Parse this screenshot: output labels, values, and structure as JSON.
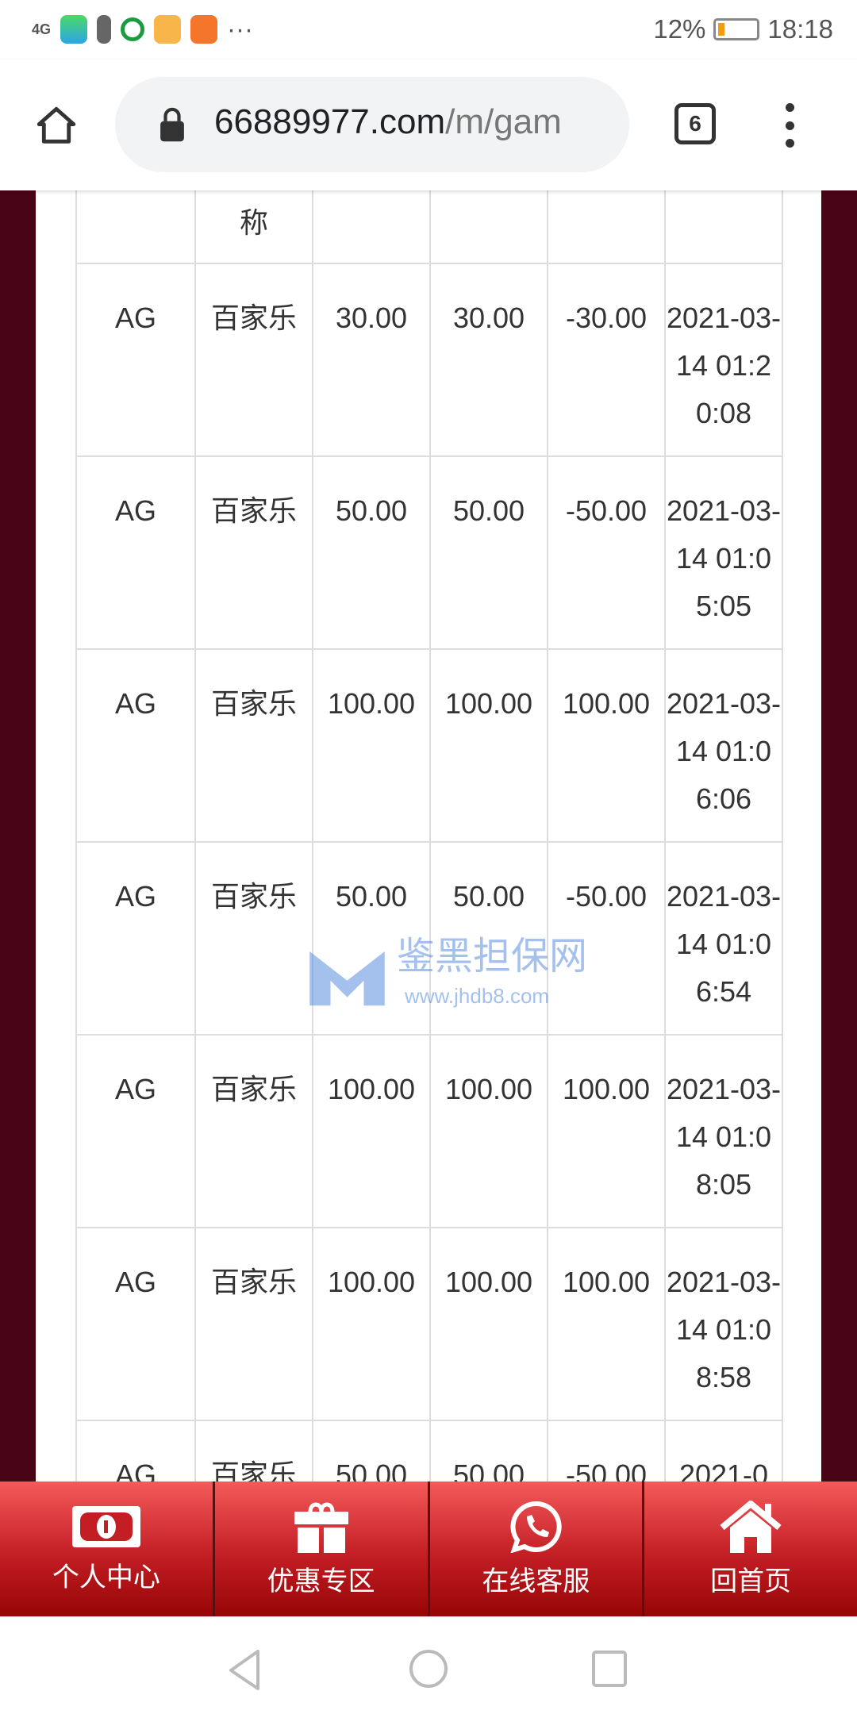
{
  "status": {
    "signal": "4G",
    "battery": "12%",
    "time": "18:18",
    "more": "···"
  },
  "browser": {
    "url_host": "66889977.com",
    "url_path": "/m/gam",
    "tab_count": "6"
  },
  "table": {
    "header_partial": [
      "",
      "称",
      "",
      "",
      "",
      ""
    ],
    "rows": [
      [
        "AG",
        "百家乐",
        "30.00",
        "30.00",
        "-30.00",
        "2021-03-14 01:20:08"
      ],
      [
        "AG",
        "百家乐",
        "50.00",
        "50.00",
        "-50.00",
        "2021-03-14 01:05:05"
      ],
      [
        "AG",
        "百家乐",
        "100.00",
        "100.00",
        "100.00",
        "2021-03-14 01:06:06"
      ],
      [
        "AG",
        "百家乐",
        "50.00",
        "50.00",
        "-50.00",
        "2021-03-14 01:06:54"
      ],
      [
        "AG",
        "百家乐",
        "100.00",
        "100.00",
        "100.00",
        "2021-03-14 01:08:05"
      ],
      [
        "AG",
        "百家乐",
        "100.00",
        "100.00",
        "100.00",
        "2021-03-14 01:08:58"
      ],
      [
        "AG",
        "百家乐",
        "50.00",
        "50.00",
        "-50.00",
        "2021-0"
      ]
    ]
  },
  "watermark": {
    "name": "鉴黑担保网",
    "url": "www.jhdb8.com"
  },
  "bottom_nav": [
    {
      "label": "个人中心",
      "icon": "money-icon"
    },
    {
      "label": "优惠专区",
      "icon": "gift-icon"
    },
    {
      "label": "在线客服",
      "icon": "chat-phone-icon"
    },
    {
      "label": "回首页",
      "icon": "home-icon"
    }
  ],
  "colors": {
    "page_bg": "#4a0418",
    "nav_red": "#c21e24"
  }
}
